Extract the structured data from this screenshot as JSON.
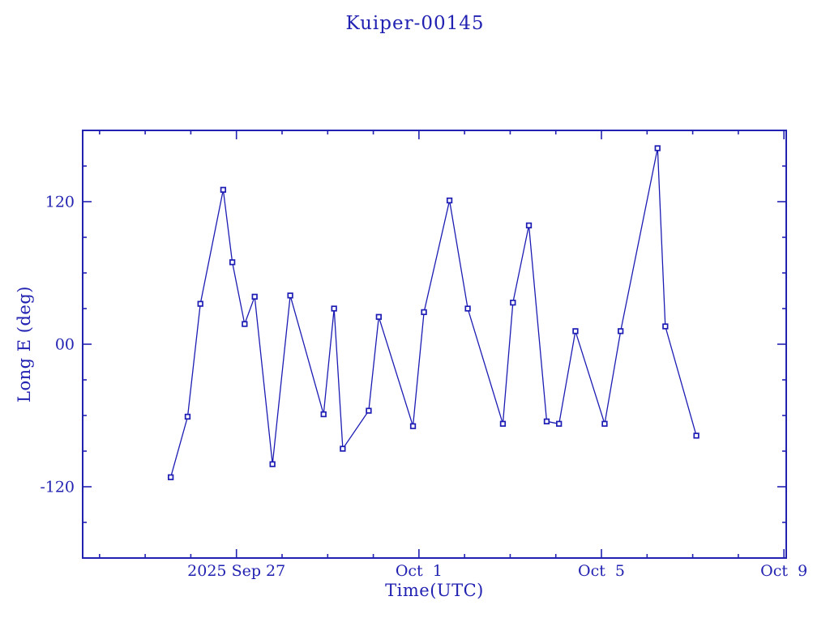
{
  "window": {
    "background": "#ffffff"
  },
  "colors": {
    "primary": "#2222b2",
    "line": "#1c1cb4",
    "marker_stroke": "#1c1cb4",
    "marker_fill": "#ffffff"
  },
  "chart_data": {
    "type": "line",
    "title": "Kuiper-00145",
    "xlabel": "Time(UTC)",
    "ylabel": "Long E (deg)",
    "grid": false,
    "legend": null,
    "x_unit": "days since 2025 Sep 27 00:00 UTC",
    "x_range": [
      -3.37,
      12.05
    ],
    "y_range": [
      -180,
      180
    ],
    "x_ticks_major": [
      {
        "x": 0,
        "label": "2025 Sep 27"
      },
      {
        "x": 4,
        "label": "Oct  1"
      },
      {
        "x": 8,
        "label": "Oct  5"
      },
      {
        "x": 12,
        "label": "Oct  9"
      }
    ],
    "x_ticks_minor": [
      -3,
      -2,
      -1,
      1,
      2,
      3,
      5,
      6,
      7,
      9,
      10,
      11
    ],
    "y_ticks_major": [
      {
        "y": 120,
        "label": "120"
      },
      {
        "y": 0,
        "label": "00"
      },
      {
        "y": -120,
        "label": "-120"
      }
    ],
    "y_ticks_minor": [
      150,
      90,
      60,
      30,
      -30,
      -60,
      -90,
      -150
    ],
    "series": [
      {
        "name": "Long E",
        "marker": "open-square",
        "points": [
          {
            "x": -1.44,
            "y": -112
          },
          {
            "x": -1.07,
            "y": -61
          },
          {
            "x": -0.79,
            "y": 34
          },
          {
            "x": -0.29,
            "y": 130
          },
          {
            "x": -0.09,
            "y": 69
          },
          {
            "x": 0.18,
            "y": 17
          },
          {
            "x": 0.4,
            "y": 40
          },
          {
            "x": 0.79,
            "y": -101
          },
          {
            "x": 1.18,
            "y": 41
          },
          {
            "x": 1.91,
            "y": -59
          },
          {
            "x": 2.14,
            "y": 30
          },
          {
            "x": 2.33,
            "y": -88
          },
          {
            "x": 2.9,
            "y": -56
          },
          {
            "x": 3.12,
            "y": 23
          },
          {
            "x": 3.87,
            "y": -69
          },
          {
            "x": 4.11,
            "y": 27
          },
          {
            "x": 4.67,
            "y": 121
          },
          {
            "x": 5.07,
            "y": 30
          },
          {
            "x": 5.84,
            "y": -67
          },
          {
            "x": 6.06,
            "y": 35
          },
          {
            "x": 6.41,
            "y": 100
          },
          {
            "x": 6.8,
            "y": -65
          },
          {
            "x": 7.07,
            "y": -67
          },
          {
            "x": 7.43,
            "y": 11
          },
          {
            "x": 8.07,
            "y": -67
          },
          {
            "x": 8.42,
            "y": 11
          },
          {
            "x": 9.23,
            "y": 165
          },
          {
            "x": 9.4,
            "y": 15
          },
          {
            "x": 10.08,
            "y": -77
          }
        ]
      }
    ]
  }
}
